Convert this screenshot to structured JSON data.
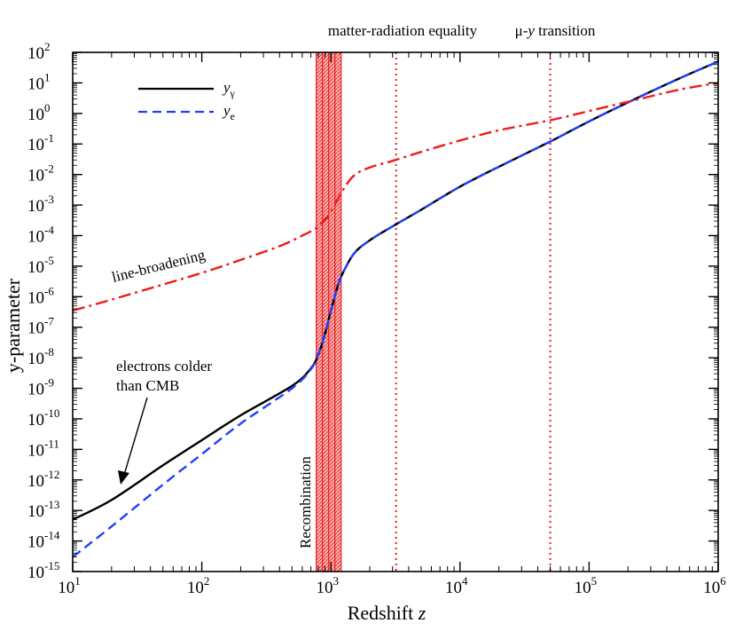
{
  "chart_data": {
    "type": "line",
    "xscale": "log",
    "yscale": "log",
    "xlabel": "Redshift",
    "xlabel_var": "z",
    "ylabel": "y-parameter",
    "xlim": [
      10,
      1000000
    ],
    "ylim": [
      1e-15,
      100
    ],
    "x_ticks": [
      {
        "base": "10",
        "exp": "1",
        "value": 10
      },
      {
        "base": "10",
        "exp": "2",
        "value": 100
      },
      {
        "base": "10",
        "exp": "3",
        "value": 1000
      },
      {
        "base": "10",
        "exp": "4",
        "value": 10000
      },
      {
        "base": "10",
        "exp": "5",
        "value": 100000
      },
      {
        "base": "10",
        "exp": "6",
        "value": 1000000
      }
    ],
    "y_ticks": [
      {
        "base": "10",
        "exp": "-15",
        "value": 1e-15
      },
      {
        "base": "10",
        "exp": "-14",
        "value": 1e-14
      },
      {
        "base": "10",
        "exp": "-13",
        "value": 1e-13
      },
      {
        "base": "10",
        "exp": "-12",
        "value": 1e-12
      },
      {
        "base": "10",
        "exp": "-11",
        "value": 1e-11
      },
      {
        "base": "10",
        "exp": "-10",
        "value": 1e-10
      },
      {
        "base": "10",
        "exp": "-9",
        "value": 1e-09
      },
      {
        "base": "10",
        "exp": "-8",
        "value": 1e-08
      },
      {
        "base": "10",
        "exp": "-7",
        "value": 1e-07
      },
      {
        "base": "10",
        "exp": "-6",
        "value": 1e-06
      },
      {
        "base": "10",
        "exp": "-5",
        "value": 1e-05
      },
      {
        "base": "10",
        "exp": "-4",
        "value": 0.0001
      },
      {
        "base": "10",
        "exp": "-3",
        "value": 0.001
      },
      {
        "base": "10",
        "exp": "-2",
        "value": 0.01
      },
      {
        "base": "10",
        "exp": "-1",
        "value": 0.1
      },
      {
        "base": "10",
        "exp": "0",
        "value": 1
      },
      {
        "base": "10",
        "exp": "1",
        "value": 10
      },
      {
        "base": "10",
        "exp": "2",
        "value": 100
      }
    ],
    "series": [
      {
        "name": "y_gamma",
        "legend_var": "y",
        "legend_sub": "γ",
        "color": "#000000",
        "style": "solid",
        "x": [
          10,
          20,
          50,
          100,
          200,
          500,
          700,
          800,
          900,
          1000,
          1100,
          1200,
          1500,
          2000,
          3000,
          5000,
          10000,
          20000,
          50000,
          100000,
          200000,
          500000,
          1000000
        ],
        "y": [
          5e-14,
          2.2e-13,
          3e-12,
          2e-11,
          1.3e-10,
          1.2e-09,
          4.5e-09,
          1.3e-08,
          6e-08,
          3.5e-07,
          1.5e-06,
          4.5e-06,
          2.5e-05,
          7e-05,
          0.0002,
          0.0007,
          0.004,
          0.018,
          0.12,
          0.55,
          2.3,
          14,
          50
        ]
      },
      {
        "name": "y_e",
        "legend_var": "y",
        "legend_sub": "e",
        "color": "#1f3fff",
        "style": "dashed",
        "x": [
          10,
          20,
          50,
          100,
          200,
          500,
          700,
          800,
          900,
          1000,
          1100,
          1200,
          1500,
          2000,
          3000,
          5000,
          10000,
          20000,
          50000,
          100000,
          200000,
          500000,
          1000000
        ],
        "y": [
          3e-15,
          3e-14,
          7e-13,
          7e-12,
          7e-11,
          1e-09,
          4.2e-09,
          1.3e-08,
          6e-08,
          3.5e-07,
          1.5e-06,
          4.5e-06,
          2.5e-05,
          7e-05,
          0.0002,
          0.0007,
          0.004,
          0.018,
          0.12,
          0.55,
          2.3,
          14,
          50
        ]
      },
      {
        "name": "line-broadening",
        "color": "#ee1c1c",
        "style": "dashdot",
        "x": [
          10,
          20,
          50,
          100,
          200,
          400,
          600,
          800,
          1000,
          1200,
          1500,
          2000,
          3000,
          5000,
          10000,
          20000,
          50000,
          100000,
          200000,
          500000,
          1000000
        ],
        "y": [
          3.5e-07,
          8e-07,
          2.5e-06,
          6e-06,
          1.6e-05,
          4.5e-05,
          0.0001,
          0.0002,
          0.0006,
          0.0025,
          0.009,
          0.017,
          0.028,
          0.055,
          0.13,
          0.28,
          0.6,
          1.2,
          2.4,
          6,
          10
        ]
      }
    ],
    "recombination_band": {
      "x_from": 770,
      "x_to": 1200,
      "label": "Recombination",
      "color": "#ee1c1c"
    },
    "vertical_markers": [
      {
        "x": 3200,
        "label": "matter-radiation equality",
        "color": "#ee1c1c"
      },
      {
        "x": 50000,
        "label_prefix": "μ-",
        "label_var": "y",
        "label_suffix": " transition",
        "color": "#ee1c1c"
      }
    ],
    "annotations": {
      "line_broadening": "line-broadening",
      "electrons_line1": "electrons colder",
      "electrons_line2": "than CMB"
    }
  }
}
